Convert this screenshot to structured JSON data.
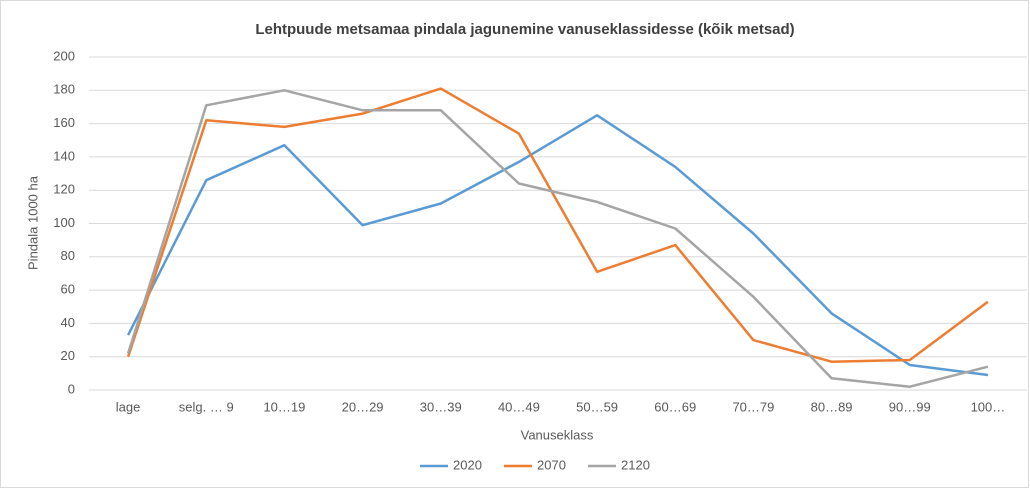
{
  "chart_data": {
    "type": "line",
    "title": "Lehtpuude metsamaa pindala jagunemine vanuseklassidesse (kõik metsad)",
    "x_label": "Vanuseklass",
    "y_label": "Pindala 1000 ha",
    "categories": [
      "lage",
      "selg. … 9",
      "10…19",
      "20…29",
      "30…39",
      "40…49",
      "50…59",
      "60…69",
      "70…79",
      "80…89",
      "90…99",
      "100…"
    ],
    "series": [
      {
        "name": "2020",
        "color": "#5b9bd5",
        "values": [
          33,
          126,
          147,
          99,
          112,
          137,
          165,
          134,
          94,
          46,
          15,
          9
        ]
      },
      {
        "name": "2070",
        "color": "#ed7d31",
        "values": [
          20,
          162,
          158,
          166,
          181,
          154,
          71,
          87,
          30,
          17,
          18,
          53
        ]
      },
      {
        "name": "2120",
        "color": "#a5a5a5",
        "values": [
          22,
          171,
          180,
          168,
          168,
          124,
          113,
          97,
          56,
          7,
          2,
          14
        ]
      }
    ],
    "ylim": [
      0,
      200
    ],
    "yticks": [
      0,
      20,
      40,
      60,
      80,
      100,
      120,
      140,
      160,
      180,
      200
    ],
    "grid": true,
    "legend": "bottom"
  }
}
